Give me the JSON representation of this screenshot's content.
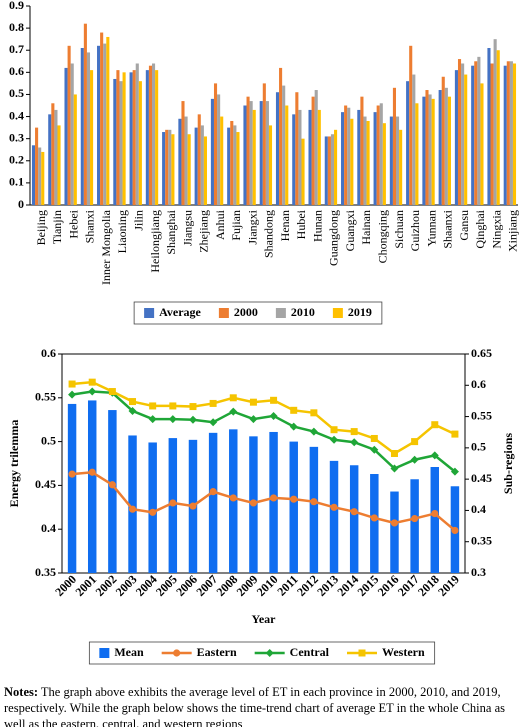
{
  "chart_data": [
    {
      "type": "bar",
      "categories": [
        "Beijing",
        "Tianjin",
        "Hebei",
        "Shanxi",
        "Inner Mongolia",
        "Liaoning",
        "Jilin",
        "Heilongjiang",
        "Shanghai",
        "Jiangsu",
        "Zhejiang",
        "Anhui",
        "Fujian",
        "Jiangxi",
        "Shandong",
        "Henan",
        "Hubei",
        "Hunan",
        "Guangdong",
        "Guangxi",
        "Hainan",
        "Chongqing",
        "Sichuan",
        "Guizhou",
        "Yunnan",
        "Shaanxi",
        "Gansu",
        "Qinghai",
        "Ningxia",
        "Xinjiang"
      ],
      "series": [
        {
          "name": "Average",
          "color": "#4472c4",
          "values": [
            0.27,
            0.41,
            0.62,
            0.71,
            0.72,
            0.57,
            0.6,
            0.61,
            0.33,
            0.39,
            0.35,
            0.48,
            0.35,
            0.45,
            0.47,
            0.51,
            0.41,
            0.43,
            0.31,
            0.42,
            0.43,
            0.42,
            0.4,
            0.56,
            0.49,
            0.52,
            0.61,
            0.63,
            0.71,
            0.63
          ]
        },
        {
          "name": "2000",
          "color": "#ed7d31",
          "values": [
            0.35,
            0.46,
            0.72,
            0.82,
            0.78,
            0.61,
            0.61,
            0.63,
            0.34,
            0.47,
            0.41,
            0.55,
            0.38,
            0.49,
            0.55,
            0.62,
            0.51,
            0.49,
            0.31,
            0.45,
            0.49,
            0.45,
            0.53,
            0.72,
            0.52,
            0.58,
            0.66,
            0.65,
            0.64,
            0.65
          ]
        },
        {
          "name": "2010",
          "color": "#a5a5a5",
          "values": [
            0.26,
            0.43,
            0.64,
            0.69,
            0.73,
            0.56,
            0.64,
            0.64,
            0.34,
            0.4,
            0.36,
            0.5,
            0.36,
            0.47,
            0.47,
            0.54,
            0.43,
            0.52,
            0.32,
            0.44,
            0.4,
            0.46,
            0.4,
            0.59,
            0.5,
            0.53,
            0.64,
            0.67,
            0.75,
            0.65
          ]
        },
        {
          "name": "2019",
          "color": "#ffc000",
          "values": [
            0.24,
            0.36,
            0.5,
            0.61,
            0.76,
            0.6,
            0.56,
            0.61,
            0.32,
            0.32,
            0.31,
            0.4,
            0.33,
            0.43,
            0.36,
            0.45,
            0.3,
            0.43,
            0.34,
            0.39,
            0.38,
            0.37,
            0.34,
            0.46,
            0.48,
            0.49,
            0.59,
            0.55,
            0.7,
            0.64
          ]
        }
      ],
      "ylim": [
        0,
        0.9
      ],
      "yticks": [
        0,
        0.1,
        0.2,
        0.3,
        0.4,
        0.5,
        0.6,
        0.7,
        0.8,
        0.9
      ],
      "grid": false,
      "legend": "bottom"
    },
    {
      "type": "bar",
      "x_label": "Year",
      "y_label": "Energy trilemma",
      "y2_label": "Sub-regions",
      "categories": [
        "2000",
        "2001",
        "2002",
        "2003",
        "2004",
        "2005",
        "2006",
        "2007",
        "2008",
        "2009",
        "2010",
        "2011",
        "2012",
        "2013",
        "2014",
        "2015",
        "2016",
        "2017",
        "2018",
        "2019"
      ],
      "series": [
        {
          "name": "Mean",
          "type": "bar",
          "color": "#0f6df0",
          "values": [
            0.543,
            0.547,
            0.536,
            0.507,
            0.499,
            0.504,
            0.502,
            0.51,
            0.514,
            0.506,
            0.511,
            0.5,
            0.494,
            0.478,
            0.473,
            0.463,
            0.443,
            0.457,
            0.471,
            0.449
          ]
        },
        {
          "name": "Eastern",
          "type": "line",
          "marker": "circle",
          "axis": "y2",
          "color": "#ed7d31",
          "values": [
            0.458,
            0.461,
            0.441,
            0.402,
            0.397,
            0.412,
            0.407,
            0.43,
            0.42,
            0.412,
            0.42,
            0.418,
            0.414,
            0.405,
            0.398,
            0.388,
            0.38,
            0.387,
            0.395,
            0.368
          ]
        },
        {
          "name": "Central",
          "type": "line",
          "marker": "diamond",
          "axis": "y2",
          "color": "#1fa637",
          "values": [
            0.585,
            0.59,
            0.588,
            0.559,
            0.546,
            0.546,
            0.545,
            0.541,
            0.558,
            0.546,
            0.551,
            0.534,
            0.526,
            0.513,
            0.509,
            0.497,
            0.467,
            0.481,
            0.488,
            0.462
          ]
        },
        {
          "name": "Western",
          "type": "line",
          "marker": "square",
          "axis": "y2",
          "color": "#f5c400",
          "values": [
            0.602,
            0.605,
            0.59,
            0.574,
            0.567,
            0.567,
            0.566,
            0.571,
            0.58,
            0.573,
            0.576,
            0.56,
            0.556,
            0.529,
            0.526,
            0.515,
            0.491,
            0.51,
            0.537,
            0.522
          ]
        }
      ],
      "ylim": [
        0.35,
        0.6
      ],
      "yticks": [
        0.35,
        0.4,
        0.45,
        0.5,
        0.55,
        0.6
      ],
      "y2lim": [
        0.3,
        0.65
      ],
      "y2ticks": [
        0.3,
        0.35,
        0.4,
        0.45,
        0.5,
        0.55,
        0.6,
        0.65
      ],
      "grid": false,
      "legend": "bottom"
    }
  ],
  "notes": {
    "label": "Notes:",
    "text": "The graph above exhibits the average level of ET in each province in 2000, 2010, and 2019, respectively. While the graph below shows the time-trend chart of average ET in the whole China as well as the eastern, central, and western regions"
  }
}
